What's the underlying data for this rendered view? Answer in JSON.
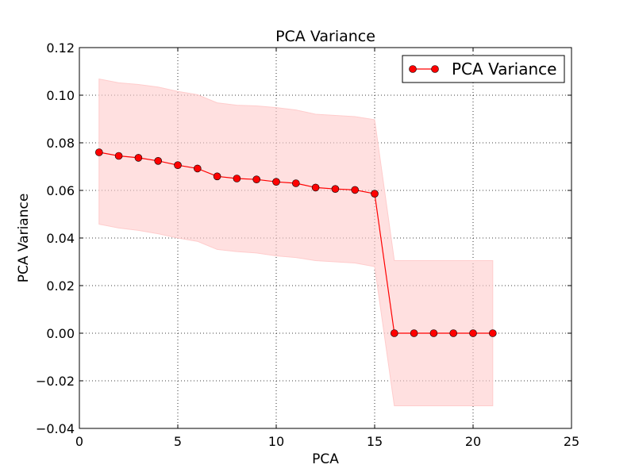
{
  "chart_data": {
    "type": "line",
    "title": "PCA Variance",
    "xlabel": "PCA",
    "ylabel": "PCA Variance",
    "xlim": [
      0,
      25
    ],
    "ylim": [
      -0.04,
      0.12
    ],
    "xticks": [
      0,
      5,
      10,
      15,
      20,
      25
    ],
    "yticks": [
      -0.04,
      -0.02,
      0.0,
      0.02,
      0.04,
      0.06,
      0.08,
      0.1,
      0.12
    ],
    "xtick_labels": [
      "0",
      "5",
      "10",
      "15",
      "20",
      "25"
    ],
    "ytick_labels": [
      "−0.04",
      "−0.02",
      "0.00",
      "0.02",
      "0.04",
      "0.06",
      "0.08",
      "0.10",
      "0.12"
    ],
    "grid": true,
    "legend_placement": "top-right",
    "series": [
      {
        "name": "PCA Variance",
        "color": "#ff0000",
        "marker": "circle",
        "band_color": "#ffcccc",
        "x": [
          1,
          2,
          3,
          4,
          5,
          6,
          7,
          8,
          9,
          10,
          11,
          12,
          13,
          14,
          15,
          16,
          17,
          18,
          19,
          20,
          21
        ],
        "y": [
          0.076,
          0.0745,
          0.0737,
          0.0724,
          0.0706,
          0.0692,
          0.0659,
          0.065,
          0.0646,
          0.0636,
          0.063,
          0.0612,
          0.0606,
          0.0602,
          0.0586,
          0.0,
          0.0,
          0.0,
          0.0,
          0.0,
          0.0
        ],
        "upper": [
          0.1068,
          0.1052,
          0.1045,
          0.1034,
          0.1016,
          0.1002,
          0.0968,
          0.0958,
          0.0955,
          0.0948,
          0.0938,
          0.092,
          0.0915,
          0.091,
          0.0897,
          0.0305,
          0.0305,
          0.0305,
          0.0305,
          0.0305,
          0.0305
        ],
        "lower": [
          0.0458,
          0.0442,
          0.0432,
          0.0418,
          0.04,
          0.0386,
          0.0352,
          0.0343,
          0.0337,
          0.0325,
          0.0318,
          0.0305,
          0.03,
          0.0295,
          0.028,
          -0.0305,
          -0.0305,
          -0.0305,
          -0.0305,
          -0.0305,
          -0.0305
        ]
      }
    ]
  }
}
